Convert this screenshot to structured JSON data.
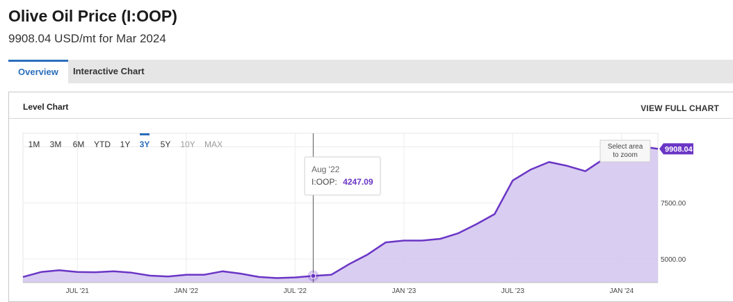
{
  "page": {
    "title": "Olive Oil Price (I:OOP)",
    "subtitle": "9908.04 USD/mt for Mar 2024"
  },
  "tabs": [
    {
      "label": "Overview",
      "active": true
    },
    {
      "label": "Interactive Chart",
      "active": false
    }
  ],
  "panel": {
    "title": "Level Chart",
    "link": "VIEW FULL CHART"
  },
  "range_buttons": [
    {
      "label": "1M",
      "state": "normal"
    },
    {
      "label": "3M",
      "state": "normal"
    },
    {
      "label": "6M",
      "state": "normal"
    },
    {
      "label": "YTD",
      "state": "normal"
    },
    {
      "label": "1Y",
      "state": "normal"
    },
    {
      "label": "3Y",
      "state": "active"
    },
    {
      "label": "5Y",
      "state": "normal"
    },
    {
      "label": "10Y",
      "state": "disabled"
    },
    {
      "label": "MAX",
      "state": "disabled"
    }
  ],
  "zoom_hint": [
    "Select area",
    "to zoom"
  ],
  "tooltip": {
    "date": "Aug '22",
    "series_label": "I:OOP:",
    "value": "4247.09"
  },
  "last_value_label": "9908.04",
  "colors": {
    "line": "#6a35c5",
    "area": "#d5c8f0",
    "accent": "#2a6ebb"
  },
  "chart_data": {
    "type": "area",
    "series": [
      {
        "name": "I:OOP",
        "x": [
          "2021-04",
          "2021-05",
          "2021-06",
          "2021-07",
          "2021-08",
          "2021-09",
          "2021-10",
          "2021-11",
          "2021-12",
          "2022-01",
          "2022-02",
          "2022-03",
          "2022-04",
          "2022-05",
          "2022-06",
          "2022-07",
          "2022-08",
          "2022-09",
          "2022-10",
          "2022-11",
          "2022-12",
          "2023-01",
          "2023-02",
          "2023-03",
          "2023-04",
          "2023-05",
          "2023-06",
          "2023-07",
          "2023-08",
          "2023-09",
          "2023-10",
          "2023-11",
          "2023-12",
          "2024-01",
          "2024-02",
          "2024-03"
        ],
        "values": [
          4200,
          4420,
          4500,
          4420,
          4410,
          4450,
          4390,
          4260,
          4220,
          4300,
          4300,
          4450,
          4350,
          4200,
          4150,
          4180,
          4247.09,
          4300,
          4780,
          5200,
          5740,
          5820,
          5820,
          5900,
          6150,
          6550,
          7000,
          8500,
          8990,
          9320,
          9150,
          8910,
          9450,
          10220,
          10020,
          9908.04
        ]
      }
    ],
    "x_ticks": [
      "JUL '21",
      "JAN '22",
      "JUL '22",
      "JAN '23",
      "JUL '23",
      "JAN '24"
    ],
    "x_tick_dates": [
      "2021-07",
      "2022-01",
      "2022-07",
      "2023-01",
      "2023-07",
      "2024-01"
    ],
    "y_ticks": [
      "5000.00",
      "7500.00"
    ],
    "y_tick_values": [
      5000,
      7500
    ],
    "grid": true,
    "ylim": [
      3950,
      10600
    ]
  }
}
